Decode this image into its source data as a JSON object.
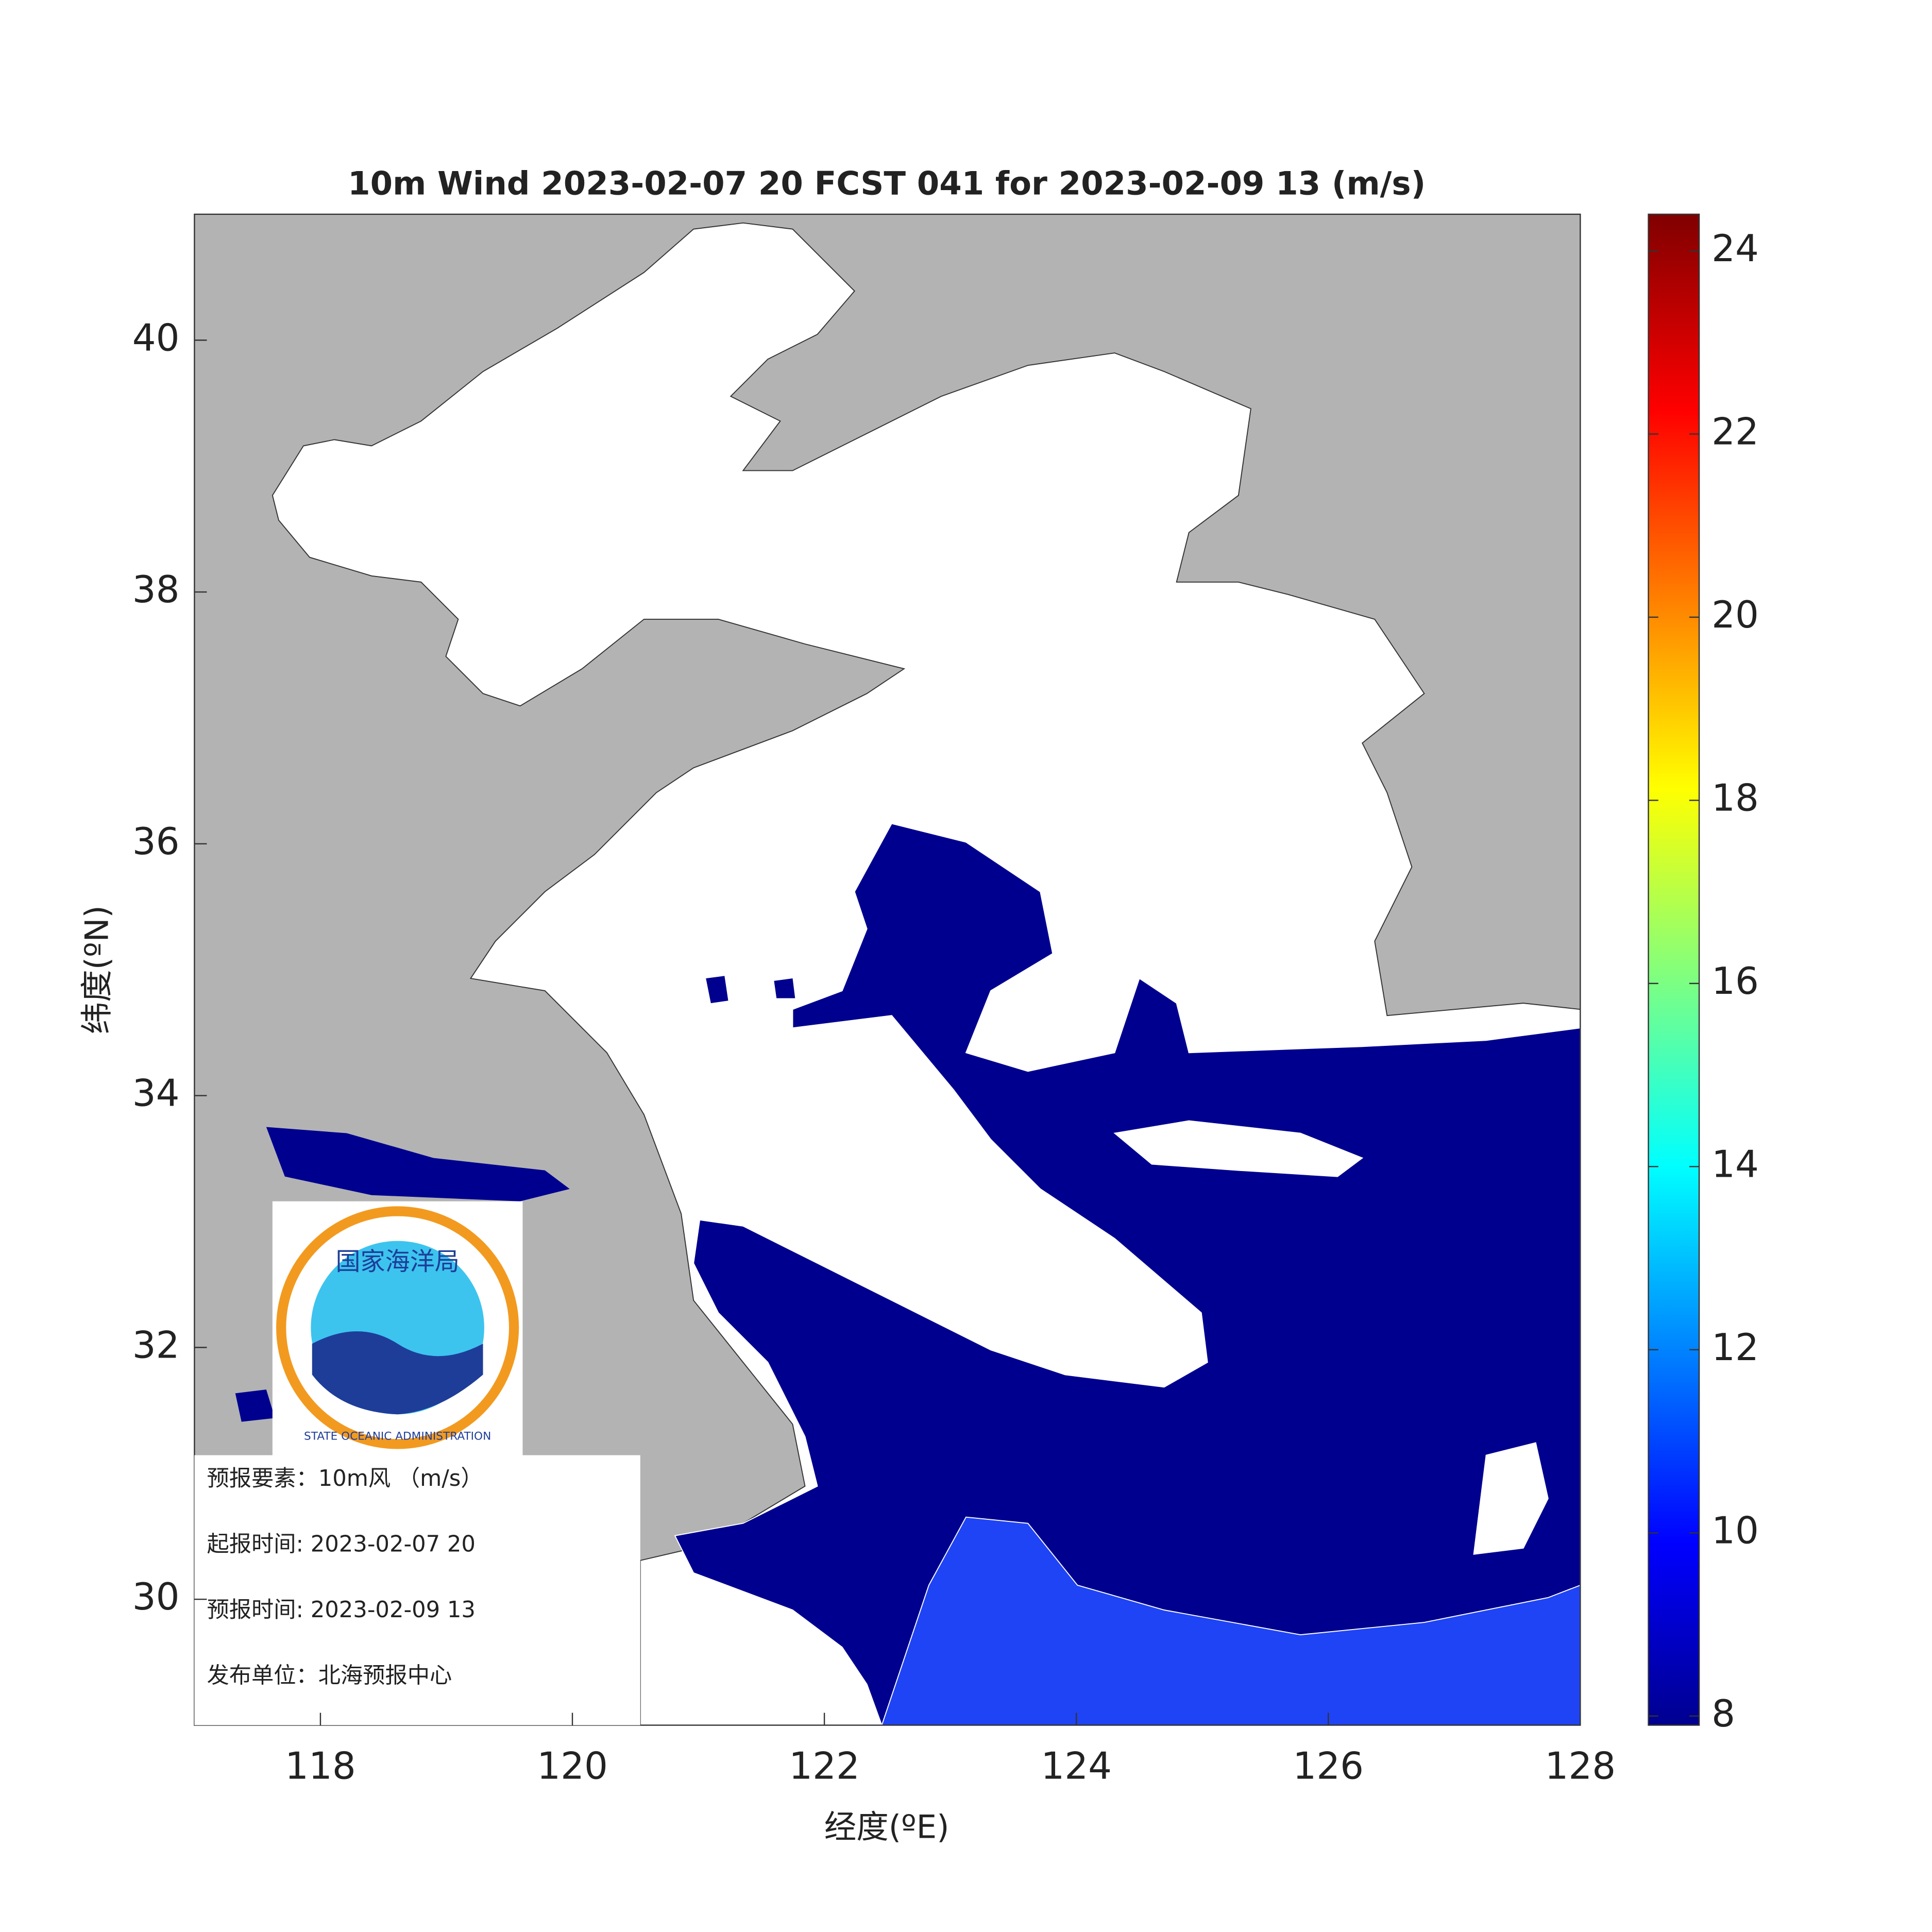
{
  "title": "10m Wind 2023-02-07 20 FCST 041 for 2023-02-09 13 (m/s)",
  "map": {
    "xlabel": "经度(ºE)",
    "ylabel": "纬度(ºN)",
    "xlim": [
      117,
      128
    ],
    "xticks": [
      118,
      120,
      122,
      124,
      126,
      128
    ],
    "ylim": [
      29,
      41
    ],
    "yticks": [
      30,
      32,
      34,
      36,
      38,
      40
    ]
  },
  "colorbar": {
    "lim": [
      7.9,
      24.4
    ],
    "ticks": [
      8,
      10,
      12,
      14,
      16,
      18,
      20,
      22,
      24
    ]
  },
  "logo": {
    "top": "国家海洋局",
    "bottom": "STATE OCEANIC ADMINISTRATION"
  },
  "info": [
    "预报要素：10m风 （m/s）",
    "起报时间: 2023-02-07 20",
    "预报时间: 2023-02-09 13",
    "发布单位：北海预报中心"
  ]
}
